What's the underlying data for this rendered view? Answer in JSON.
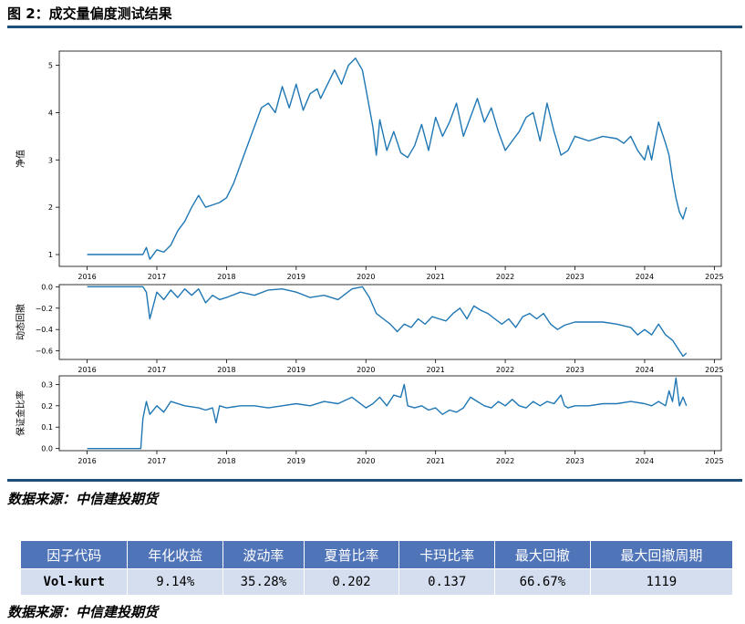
{
  "figure": {
    "title": "图 2：成交量偏度测试结果"
  },
  "source_top": "数据来源：中信建投期货",
  "source_bottom": "数据来源：中信建投期货",
  "colors": {
    "line": "#1f77b4",
    "rule": "#1f4e79",
    "table_header": "#4f74b8",
    "table_row": "#d4deef"
  },
  "chart_data": [
    {
      "type": "line",
      "ylabel": "净值",
      "ylim": [
        0.75,
        5.3
      ],
      "yticks": [
        1,
        2,
        3,
        4,
        5
      ],
      "xlim": [
        2015.6,
        2025.1
      ],
      "xticks": [
        "2016",
        "2017",
        "2018",
        "2019",
        "2020",
        "2021",
        "2022",
        "2023",
        "2024",
        "2025"
      ],
      "grid": false,
      "x": [
        2016.0,
        2016.8,
        2016.85,
        2016.9,
        2017.0,
        2017.1,
        2017.2,
        2017.3,
        2017.4,
        2017.5,
        2017.6,
        2017.7,
        2017.8,
        2017.9,
        2018.0,
        2018.1,
        2018.3,
        2018.5,
        2018.6,
        2018.7,
        2018.8,
        2018.9,
        2019.0,
        2019.1,
        2019.2,
        2019.3,
        2019.35,
        2019.45,
        2019.55,
        2019.65,
        2019.75,
        2019.85,
        2019.95,
        2020.0,
        2020.1,
        2020.15,
        2020.2,
        2020.3,
        2020.4,
        2020.5,
        2020.6,
        2020.7,
        2020.8,
        2020.9,
        2021.0,
        2021.1,
        2021.2,
        2021.3,
        2021.4,
        2021.5,
        2021.6,
        2021.7,
        2021.8,
        2021.9,
        2022.0,
        2022.1,
        2022.2,
        2022.3,
        2022.4,
        2022.5,
        2022.6,
        2022.7,
        2022.8,
        2022.9,
        2023.0,
        2023.2,
        2023.4,
        2023.6,
        2023.7,
        2023.8,
        2023.9,
        2024.0,
        2024.05,
        2024.1,
        2024.2,
        2024.3,
        2024.35,
        2024.4,
        2024.45,
        2024.5,
        2024.55,
        2024.6
      ],
      "y": [
        1.0,
        1.0,
        1.15,
        0.9,
        1.1,
        1.05,
        1.2,
        1.5,
        1.7,
        2.0,
        2.25,
        2.0,
        2.05,
        2.1,
        2.2,
        2.5,
        3.3,
        4.1,
        4.2,
        4.0,
        4.55,
        4.1,
        4.6,
        4.05,
        4.4,
        4.5,
        4.3,
        4.6,
        4.9,
        4.6,
        5.0,
        5.15,
        4.9,
        4.5,
        3.7,
        3.1,
        3.85,
        3.2,
        3.6,
        3.15,
        3.05,
        3.3,
        3.75,
        3.2,
        3.9,
        3.5,
        3.8,
        4.2,
        3.5,
        3.9,
        4.3,
        3.8,
        4.1,
        3.6,
        3.2,
        3.4,
        3.6,
        3.9,
        4.0,
        3.4,
        4.2,
        3.6,
        3.1,
        3.2,
        3.5,
        3.4,
        3.5,
        3.45,
        3.35,
        3.5,
        3.2,
        3.0,
        3.3,
        3.0,
        3.8,
        3.35,
        3.1,
        2.6,
        2.2,
        1.9,
        1.75,
        2.0
      ]
    },
    {
      "type": "line",
      "ylabel": "动态回撤",
      "ylim": [
        -0.68,
        0.02
      ],
      "yticks": [
        0.0,
        -0.2,
        -0.4,
        -0.6
      ],
      "ytick_labels": [
        "0.0",
        "−0.2",
        "−0.4",
        "−0.6"
      ],
      "xlim": [
        2015.6,
        2025.1
      ],
      "xticks": [
        "2016",
        "2017",
        "2018",
        "2019",
        "2020",
        "2021",
        "2022",
        "2023",
        "2024",
        "2025"
      ],
      "grid": false,
      "x": [
        2016.0,
        2016.8,
        2016.85,
        2016.9,
        2017.0,
        2017.1,
        2017.2,
        2017.3,
        2017.4,
        2017.5,
        2017.6,
        2017.7,
        2017.8,
        2017.9,
        2018.0,
        2018.2,
        2018.4,
        2018.6,
        2018.8,
        2019.0,
        2019.2,
        2019.4,
        2019.6,
        2019.8,
        2019.95,
        2020.05,
        2020.15,
        2020.25,
        2020.35,
        2020.45,
        2020.55,
        2020.65,
        2020.75,
        2020.85,
        2020.95,
        2021.05,
        2021.15,
        2021.25,
        2021.35,
        2021.45,
        2021.55,
        2021.65,
        2021.75,
        2021.85,
        2021.95,
        2022.05,
        2022.15,
        2022.25,
        2022.35,
        2022.45,
        2022.55,
        2022.65,
        2022.75,
        2022.85,
        2023.0,
        2023.2,
        2023.4,
        2023.6,
        2023.8,
        2023.9,
        2024.0,
        2024.1,
        2024.2,
        2024.3,
        2024.4,
        2024.5,
        2024.55,
        2024.6
      ],
      "y": [
        0.0,
        0.0,
        -0.05,
        -0.3,
        -0.05,
        -0.12,
        -0.03,
        -0.1,
        -0.02,
        -0.08,
        -0.02,
        -0.15,
        -0.08,
        -0.12,
        -0.1,
        -0.05,
        -0.08,
        -0.03,
        -0.02,
        -0.05,
        -0.1,
        -0.08,
        -0.12,
        -0.02,
        0.0,
        -0.1,
        -0.25,
        -0.3,
        -0.35,
        -0.42,
        -0.35,
        -0.38,
        -0.3,
        -0.35,
        -0.28,
        -0.3,
        -0.32,
        -0.25,
        -0.2,
        -0.3,
        -0.18,
        -0.22,
        -0.25,
        -0.3,
        -0.35,
        -0.3,
        -0.38,
        -0.28,
        -0.25,
        -0.3,
        -0.25,
        -0.35,
        -0.4,
        -0.36,
        -0.33,
        -0.33,
        -0.33,
        -0.35,
        -0.38,
        -0.45,
        -0.4,
        -0.45,
        -0.35,
        -0.45,
        -0.5,
        -0.6,
        -0.65,
        -0.62
      ]
    },
    {
      "type": "line",
      "ylabel": "保证金比率",
      "ylim": [
        -0.01,
        0.34
      ],
      "yticks": [
        0.0,
        0.1,
        0.2,
        0.3
      ],
      "ytick_labels": [
        "0.0",
        "0.1",
        "0.2",
        "0.3"
      ],
      "xlim": [
        2015.6,
        2025.1
      ],
      "xticks": [
        "2016",
        "2017",
        "2018",
        "2019",
        "2020",
        "2021",
        "2022",
        "2023",
        "2024",
        "2025"
      ],
      "grid": false,
      "x": [
        2016.0,
        2016.77,
        2016.8,
        2016.85,
        2016.9,
        2017.0,
        2017.1,
        2017.2,
        2017.4,
        2017.6,
        2017.7,
        2017.8,
        2017.85,
        2017.9,
        2018.0,
        2018.2,
        2018.4,
        2018.6,
        2018.8,
        2019.0,
        2019.2,
        2019.4,
        2019.6,
        2019.8,
        2020.0,
        2020.1,
        2020.2,
        2020.3,
        2020.4,
        2020.5,
        2020.55,
        2020.6,
        2020.7,
        2020.8,
        2020.9,
        2021.0,
        2021.1,
        2021.2,
        2021.3,
        2021.4,
        2021.5,
        2021.6,
        2021.7,
        2021.8,
        2021.9,
        2022.0,
        2022.1,
        2022.2,
        2022.3,
        2022.4,
        2022.5,
        2022.6,
        2022.7,
        2022.8,
        2022.85,
        2022.9,
        2023.0,
        2023.2,
        2023.4,
        2023.6,
        2023.8,
        2024.0,
        2024.1,
        2024.2,
        2024.3,
        2024.35,
        2024.4,
        2024.45,
        2024.5,
        2024.55,
        2024.6
      ],
      "y": [
        0.0,
        0.0,
        0.14,
        0.22,
        0.16,
        0.2,
        0.17,
        0.22,
        0.2,
        0.19,
        0.18,
        0.19,
        0.12,
        0.2,
        0.19,
        0.2,
        0.2,
        0.19,
        0.2,
        0.21,
        0.2,
        0.22,
        0.21,
        0.24,
        0.19,
        0.21,
        0.24,
        0.2,
        0.25,
        0.24,
        0.3,
        0.2,
        0.19,
        0.2,
        0.18,
        0.19,
        0.16,
        0.18,
        0.17,
        0.19,
        0.24,
        0.22,
        0.2,
        0.19,
        0.22,
        0.2,
        0.23,
        0.2,
        0.19,
        0.22,
        0.2,
        0.22,
        0.21,
        0.25,
        0.2,
        0.19,
        0.2,
        0.2,
        0.21,
        0.21,
        0.22,
        0.21,
        0.2,
        0.22,
        0.2,
        0.27,
        0.22,
        0.33,
        0.2,
        0.24,
        0.2
      ]
    }
  ],
  "table": {
    "headers": [
      "因子代码",
      "年化收益",
      "波动率",
      "夏普比率",
      "卡玛比率",
      "最大回撤",
      "最大回撤周期"
    ],
    "row": [
      "Vol-kurt",
      "9.14%",
      "35.28%",
      "0.202",
      "0.137",
      "66.67%",
      "1119"
    ]
  }
}
